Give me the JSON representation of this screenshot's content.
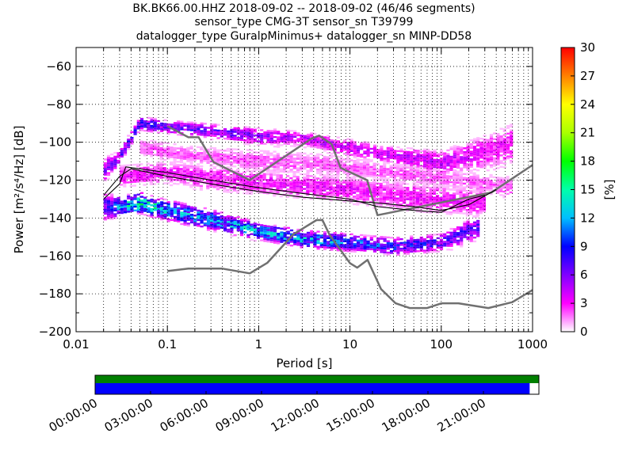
{
  "header": {
    "line1": "BK.BK66.00.HHZ   2018-09-02 -- 2018-09-02  (46/46 segments)",
    "line2": "sensor_type CMG-3T sensor_sn T39799",
    "line3": "datalogger_type GuralpMinimus+ datalogger_sn MINP-DD58"
  },
  "chart_data": [
    {
      "type": "heatmap",
      "title": "",
      "xlabel": "Period [s]",
      "ylabel": "Power [m²/s⁴/Hz] [dB]",
      "xscale": "log",
      "xlim": [
        0.01,
        1000
      ],
      "ylim": [
        -200,
        -50
      ],
      "xtick_labels": [
        "0.01",
        "0.1",
        "1",
        "10",
        "100",
        "1000"
      ],
      "ytick_values": [
        -200,
        -180,
        -160,
        -140,
        -120,
        -100,
        -80,
        -60
      ],
      "ytick_labels": [
        "−200",
        "−180",
        "−160",
        "−140",
        "−120",
        "−100",
        "−80",
        "−60"
      ],
      "grid": true,
      "colorbar": {
        "label": "[%]",
        "range": [
          0,
          30
        ],
        "tick_labels": [
          "0",
          "3",
          "6",
          "9",
          "12",
          "15",
          "18",
          "21",
          "24",
          "27",
          "30"
        ],
        "colors": [
          "#ffffff",
          "#ff00ff",
          "#8000ff",
          "#0000ff",
          "#00bfff",
          "#00ffaa",
          "#00ff00",
          "#aaff00",
          "#ffff00",
          "#ff8000",
          "#ff0000"
        ]
      },
      "density_bands": [
        {
          "name": "band-main-lower",
          "x": [
            0.02,
            0.03,
            0.05,
            0.1,
            0.3,
            1,
            3,
            10,
            30,
            100,
            250
          ],
          "y_low": [
            -142,
            -140,
            -138,
            -142,
            -147,
            -152,
            -156,
            -158,
            -160,
            -158,
            -152
          ],
          "y_high": [
            -126,
            -128,
            -126,
            -130,
            -135,
            -142,
            -146,
            -148,
            -150,
            -148,
            -138
          ],
          "peak_percent": [
            6,
            10,
            14,
            11,
            10,
            11,
            11,
            9,
            8,
            7,
            6
          ]
        },
        {
          "name": "band-upper-1",
          "x": [
            0.02,
            0.03,
            0.05,
            0.1,
            0.3,
            1,
            3,
            10,
            30,
            100,
            300,
            600
          ],
          "y_low": [
            -122,
            -112,
            -94,
            -96,
            -98,
            -102,
            -102,
            -108,
            -112,
            -118,
            -115,
            -112
          ],
          "y_high": [
            -108,
            -104,
            -86,
            -88,
            -90,
            -92,
            -94,
            -98,
            -102,
            -104,
            -96,
            -90
          ],
          "peak_percent": [
            5,
            6,
            7,
            6,
            6,
            5,
            4,
            4,
            4,
            4,
            3,
            3
          ]
        },
        {
          "name": "band-upper-2",
          "x": [
            0.03,
            0.1,
            0.3,
            1,
            3,
            10,
            30,
            100,
            300
          ],
          "y_low": [
            -124,
            -122,
            -126,
            -128,
            -130,
            -132,
            -136,
            -138,
            -140
          ],
          "y_high": [
            -112,
            -110,
            -112,
            -114,
            -116,
            -118,
            -120,
            -122,
            -124
          ],
          "peak_percent": [
            3,
            3,
            3,
            3,
            3,
            3,
            3,
            3,
            3
          ]
        },
        {
          "name": "band-upper-3",
          "x": [
            0.05,
            0.2,
            1,
            5,
            20,
            100,
            600
          ],
          "y_low": [
            -108,
            -112,
            -116,
            -118,
            -120,
            -124,
            -130
          ],
          "y_high": [
            -98,
            -102,
            -104,
            -106,
            -110,
            -114,
            -118
          ],
          "peak_percent": [
            2,
            2,
            2,
            2,
            2,
            2,
            2
          ]
        }
      ],
      "series": [
        {
          "name": "noise-model-high",
          "color": "#707070",
          "x": [
            0.1,
            0.17,
            0.22,
            0.32,
            0.8,
            3.8,
            4.6,
            6.3,
            7.9,
            15.4,
            20,
            354.8,
            1000
          ],
          "y": [
            -91.5,
            -97.4,
            -97.4,
            -110.5,
            -120.0,
            -98.0,
            -96.5,
            -101.0,
            -113.5,
            -120.0,
            -138.5,
            -126.5,
            -112.0
          ]
        },
        {
          "name": "noise-model-low",
          "color": "#707070",
          "x": [
            0.1,
            0.17,
            0.4,
            0.8,
            1.24,
            2.4,
            4.3,
            5.0,
            6.0,
            10.0,
            12.0,
            15.6,
            21.9,
            31.6,
            45.0,
            70.0,
            101.0,
            154.0,
            328.0,
            600.0,
            1000.0
          ],
          "y": [
            -168.0,
            -166.7,
            -166.7,
            -169.2,
            -163.7,
            -148.6,
            -141.1,
            -141.1,
            -149.0,
            -163.8,
            -166.2,
            -162.1,
            -177.5,
            -185.0,
            -187.5,
            -187.5,
            -185.0,
            -185.0,
            -187.5,
            -184.4,
            -178.0
          ],
          "line_width": 2.5
        },
        {
          "name": "mean",
          "color": "#000000",
          "x": [
            0.02,
            0.03,
            0.04,
            0.1,
            0.3,
            1,
            3,
            10,
            20,
            50,
            100,
            200,
            400
          ],
          "y": [
            -128,
            -118,
            -114,
            -118,
            -122,
            -126,
            -129,
            -131,
            -132,
            -134,
            -136,
            -133,
            -125
          ]
        },
        {
          "name": "mode",
          "color": "#000000",
          "x": [
            0.02,
            0.03,
            0.035,
            0.1,
            0.3,
            1,
            3,
            10,
            20,
            50,
            100,
            200,
            300
          ],
          "y": [
            -130,
            -122,
            -113,
            -116,
            -120,
            -124,
            -127,
            -130,
            -134,
            -136,
            -137,
            -130,
            -128
          ]
        }
      ]
    },
    {
      "type": "table",
      "title": "",
      "time_tick_labels": [
        "00:00:00",
        "03:00:00",
        "06:00:00",
        "09:00:00",
        "12:00:00",
        "15:00:00",
        "18:00:00",
        "21:00:00"
      ],
      "time_range_hours": [
        0,
        24
      ],
      "data_coverage": {
        "color": "#008000",
        "start_hour": 0,
        "end_hour": 24
      },
      "psd_coverage": {
        "color": "#0000ff",
        "start_hour": 0,
        "end_hour": 23.5
      }
    }
  ]
}
